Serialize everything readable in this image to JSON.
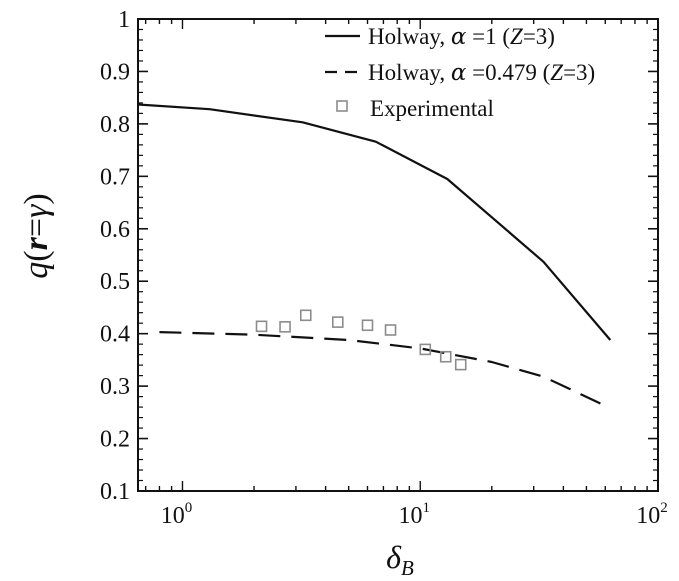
{
  "chart_data": {
    "type": "line",
    "xscale": "log",
    "xlim": [
      0.65,
      100
    ],
    "ylim": [
      0.1,
      1.0
    ],
    "xlabel": {
      "main": "δ",
      "sub": "B"
    },
    "ylabel": {
      "q": "q",
      "open": "(",
      "r": "r",
      "eq": "=",
      "gamma": "γ",
      "close": ")"
    },
    "x_ticks": [
      {
        "value": 1,
        "base": "10",
        "exp": "0"
      },
      {
        "value": 10,
        "base": "10",
        "exp": "1"
      },
      {
        "value": 100,
        "base": "10",
        "exp": "2"
      }
    ],
    "y_ticks": [
      {
        "value": 0.1,
        "label": "0.1"
      },
      {
        "value": 0.2,
        "label": "0.2"
      },
      {
        "value": 0.3,
        "label": "0.3"
      },
      {
        "value": 0.4,
        "label": "0.4"
      },
      {
        "value": 0.5,
        "label": "0.5"
      },
      {
        "value": 0.6,
        "label": "0.6"
      },
      {
        "value": 0.7,
        "label": "0.7"
      },
      {
        "value": 0.8,
        "label": "0.8"
      },
      {
        "value": 0.9,
        "label": "0.9"
      },
      {
        "value": 1.0,
        "label": "1"
      }
    ],
    "grid": false,
    "legend_position": "top-right",
    "series": [
      {
        "style": "solid",
        "color": "#111111",
        "legend": {
          "pre": "Holway, ",
          "alpha": "α",
          "mid": " =1 (",
          "z": "Z",
          "post": "=3)"
        },
        "x": [
          0.65,
          1.3,
          3.2,
          6.5,
          13,
          33,
          63
        ],
        "y": [
          0.837,
          0.828,
          0.803,
          0.766,
          0.695,
          0.537,
          0.388
        ]
      },
      {
        "style": "dashed",
        "color": "#111111",
        "legend": {
          "pre": "Holway, ",
          "alpha": "α",
          "mid": " =0.479 (",
          "z": "Z",
          "post": "=3)"
        },
        "x": [
          0.8,
          2,
          5,
          10,
          20,
          33,
          63
        ],
        "y": [
          0.403,
          0.398,
          0.388,
          0.372,
          0.346,
          0.318,
          0.258
        ]
      },
      {
        "style": "markers",
        "color": "#8c8c8c",
        "legend": {
          "label": "Experimental"
        },
        "x": [
          2.15,
          2.7,
          3.3,
          4.5,
          6.0,
          7.5,
          10.5,
          12.8,
          14.8
        ],
        "y": [
          0.414,
          0.413,
          0.435,
          0.422,
          0.416,
          0.407,
          0.37,
          0.356,
          0.341
        ]
      }
    ]
  }
}
